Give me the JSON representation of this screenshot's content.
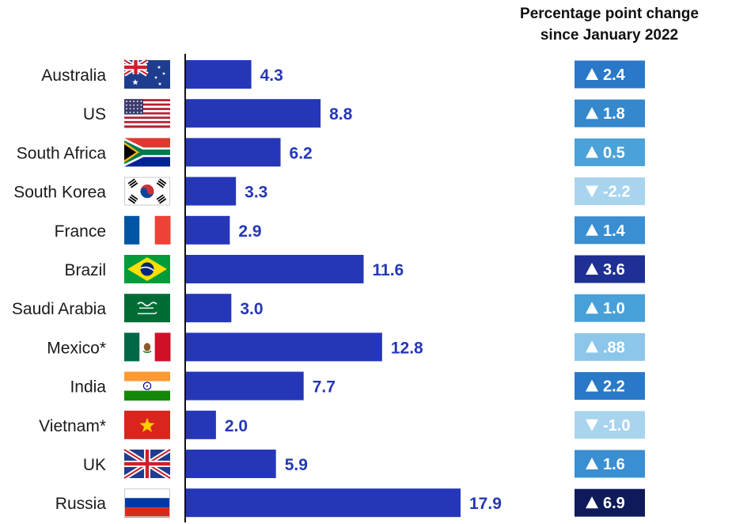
{
  "chart_data": {
    "type": "bar",
    "orientation": "horizontal",
    "bar_color": "#2537b8",
    "categories": [
      "Australia",
      "US",
      "South Africa",
      "South Korea",
      "France",
      "Brazil",
      "Saudi Arabia",
      "Mexico*",
      "India",
      "Vietnam*",
      "UK",
      "Russia"
    ],
    "flags": [
      "australia-flag-icon",
      "us-flag-icon",
      "south-africa-flag-icon",
      "south-korea-flag-icon",
      "france-flag-icon",
      "brazil-flag-icon",
      "saudi-arabia-flag-icon",
      "mexico-flag-icon",
      "india-flag-icon",
      "vietnam-flag-icon",
      "uk-flag-icon",
      "russia-flag-icon"
    ],
    "values": [
      4.3,
      8.8,
      6.2,
      3.3,
      2.9,
      11.6,
      3.0,
      12.8,
      7.7,
      2.0,
      5.9,
      17.9
    ],
    "value_labels": [
      "4.3",
      "8.8",
      "6.2",
      "3.3",
      "2.9",
      "11.6",
      "3.0",
      "12.8",
      "7.7",
      "2.0",
      "5.9",
      "17.9"
    ],
    "change_header": [
      "Percentage point change",
      "since January 2022"
    ],
    "changes": [
      2.4,
      1.8,
      0.5,
      -2.2,
      1.4,
      3.6,
      1.0,
      0.88,
      2.2,
      -1.0,
      1.6,
      6.9
    ],
    "change_labels": [
      "2.4",
      "1.8",
      "0.5",
      "-2.2",
      "1.4",
      "3.6",
      "1.0",
      ".88",
      "2.2",
      "-1.0",
      "1.6",
      "6.9"
    ],
    "change_colors": [
      "#2a78c8",
      "#3588cc",
      "#4aa2d8",
      "#a9d4ee",
      "#3a8ed2",
      "#1e2f96",
      "#48a0d8",
      "#8cc6ea",
      "#2a78c8",
      "#a9d4ee",
      "#3a8ed2",
      "#0f1a5a"
    ],
    "xlim": [
      0,
      18
    ],
    "grid": false,
    "legend": "none"
  }
}
